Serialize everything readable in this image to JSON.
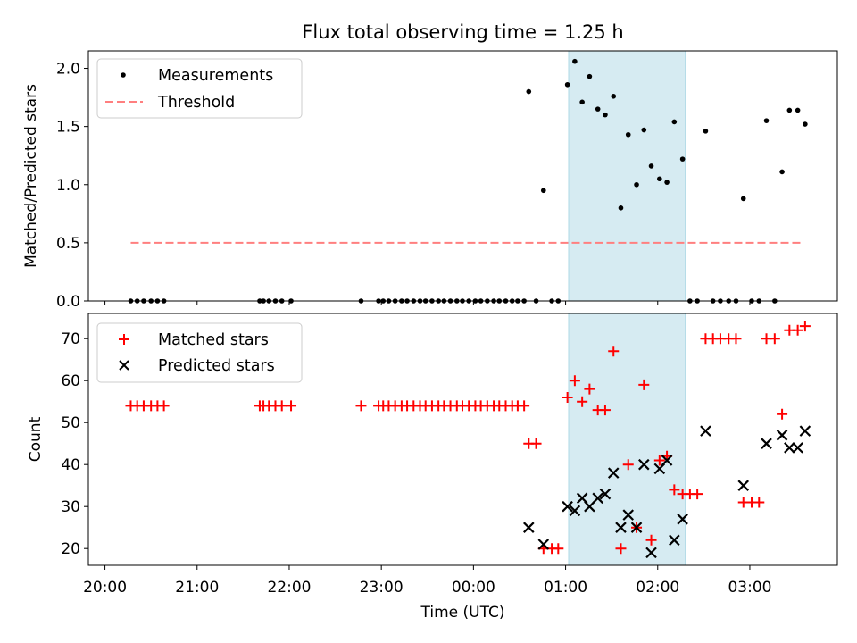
{
  "title": "Flux total observing time = 1.25 h",
  "colors": {
    "measurement": "#000000",
    "threshold": "#ff7f7f",
    "matched": "#ff0000",
    "predicted": "#000000",
    "highlight": "#add8e6"
  },
  "chart_data": [
    {
      "type": "scatter",
      "panel": "top",
      "ylabel": "Matched/Predicted stars",
      "ylim": [
        0,
        2.15
      ],
      "yticks": [
        "0.0",
        "0.5",
        "1.0",
        "1.5",
        "2.0"
      ],
      "xlim": [
        -0.18,
        7.95
      ],
      "x_unit": "hours since 20:00 UTC",
      "highlight_span": {
        "start": "01:02",
        "end": "02:18"
      },
      "legend": [
        {
          "label": "Measurements",
          "marker": "dot"
        },
        {
          "label": "Threshold",
          "marker": "dashed-line"
        }
      ],
      "threshold": {
        "value": 0.5,
        "from": 0.28,
        "to": 7.57
      },
      "series": [
        {
          "name": "Measurements",
          "points": [
            [
              0.28,
              0
            ],
            [
              0.35,
              0
            ],
            [
              0.42,
              0
            ],
            [
              0.5,
              0
            ],
            [
              0.57,
              0
            ],
            [
              0.64,
              0
            ],
            [
              1.68,
              0
            ],
            [
              1.72,
              0
            ],
            [
              1.78,
              0
            ],
            [
              1.85,
              0
            ],
            [
              1.92,
              0
            ],
            [
              2.02,
              0
            ],
            [
              2.78,
              0
            ],
            [
              2.97,
              0
            ],
            [
              3.02,
              0
            ],
            [
              3.08,
              0
            ],
            [
              3.15,
              0
            ],
            [
              3.22,
              0
            ],
            [
              3.28,
              0
            ],
            [
              3.35,
              0
            ],
            [
              3.42,
              0
            ],
            [
              3.48,
              0
            ],
            [
              3.55,
              0
            ],
            [
              3.62,
              0
            ],
            [
              3.68,
              0
            ],
            [
              3.75,
              0
            ],
            [
              3.82,
              0
            ],
            [
              3.88,
              0
            ],
            [
              3.95,
              0
            ],
            [
              4.02,
              0
            ],
            [
              4.08,
              0
            ],
            [
              4.15,
              0
            ],
            [
              4.22,
              0
            ],
            [
              4.28,
              0
            ],
            [
              4.35,
              0
            ],
            [
              4.42,
              0
            ],
            [
              4.48,
              0
            ],
            [
              4.55,
              0
            ],
            [
              4.6,
              1.8
            ],
            [
              4.68,
              0
            ],
            [
              4.76,
              0.95
            ],
            [
              4.85,
              0
            ],
            [
              4.92,
              0
            ],
            [
              5.02,
              1.86
            ],
            [
              5.1,
              2.06
            ],
            [
              5.18,
              1.71
            ],
            [
              5.26,
              1.93
            ],
            [
              5.35,
              1.65
            ],
            [
              5.43,
              1.6
            ],
            [
              5.52,
              1.76
            ],
            [
              5.6,
              0.8
            ],
            [
              5.68,
              1.43
            ],
            [
              5.77,
              1.0
            ],
            [
              5.85,
              1.47
            ],
            [
              5.93,
              1.16
            ],
            [
              6.02,
              1.05
            ],
            [
              6.1,
              1.02
            ],
            [
              6.18,
              1.54
            ],
            [
              6.27,
              1.22
            ],
            [
              6.35,
              0
            ],
            [
              6.43,
              0
            ],
            [
              6.52,
              1.46
            ],
            [
              6.6,
              0
            ],
            [
              6.68,
              0
            ],
            [
              6.77,
              0
            ],
            [
              6.85,
              0
            ],
            [
              6.93,
              0.88
            ],
            [
              7.02,
              0
            ],
            [
              7.1,
              0
            ],
            [
              7.18,
              1.55
            ],
            [
              7.27,
              0
            ],
            [
              7.35,
              1.11
            ],
            [
              7.43,
              1.64
            ],
            [
              7.52,
              1.64
            ],
            [
              7.6,
              1.52
            ]
          ]
        }
      ]
    },
    {
      "type": "scatter",
      "panel": "bottom",
      "xlabel": "Time (UTC)",
      "ylabel": "Count",
      "ylim": [
        16,
        76
      ],
      "yticks": [
        "20",
        "30",
        "40",
        "50",
        "60",
        "70"
      ],
      "xlim": [
        -0.18,
        7.95
      ],
      "xtick_labels": [
        "20:00",
        "21:00",
        "22:00",
        "23:00",
        "00:00",
        "01:00",
        "02:00",
        "03:00"
      ],
      "highlight_span": {
        "start": "01:02",
        "end": "02:18"
      },
      "legend": [
        {
          "label": "Matched stars",
          "marker": "plus"
        },
        {
          "label": "Predicted stars",
          "marker": "x"
        }
      ],
      "series": [
        {
          "name": "Matched stars",
          "points": [
            [
              0.28,
              54
            ],
            [
              0.35,
              54
            ],
            [
              0.42,
              54
            ],
            [
              0.5,
              54
            ],
            [
              0.57,
              54
            ],
            [
              0.64,
              54
            ],
            [
              1.68,
              54
            ],
            [
              1.72,
              54
            ],
            [
              1.78,
              54
            ],
            [
              1.85,
              54
            ],
            [
              1.92,
              54
            ],
            [
              2.02,
              54
            ],
            [
              2.78,
              54
            ],
            [
              2.97,
              54
            ],
            [
              3.02,
              54
            ],
            [
              3.08,
              54
            ],
            [
              3.15,
              54
            ],
            [
              3.22,
              54
            ],
            [
              3.28,
              54
            ],
            [
              3.35,
              54
            ],
            [
              3.42,
              54
            ],
            [
              3.48,
              54
            ],
            [
              3.55,
              54
            ],
            [
              3.62,
              54
            ],
            [
              3.68,
              54
            ],
            [
              3.75,
              54
            ],
            [
              3.82,
              54
            ],
            [
              3.88,
              54
            ],
            [
              3.95,
              54
            ],
            [
              4.02,
              54
            ],
            [
              4.08,
              54
            ],
            [
              4.15,
              54
            ],
            [
              4.22,
              54
            ],
            [
              4.28,
              54
            ],
            [
              4.35,
              54
            ],
            [
              4.42,
              54
            ],
            [
              4.48,
              54
            ],
            [
              4.55,
              54
            ],
            [
              4.6,
              45
            ],
            [
              4.68,
              45
            ],
            [
              4.76,
              20
            ],
            [
              4.85,
              20
            ],
            [
              4.92,
              20
            ],
            [
              5.02,
              56
            ],
            [
              5.1,
              60
            ],
            [
              5.18,
              55
            ],
            [
              5.26,
              58
            ],
            [
              5.35,
              53
            ],
            [
              5.43,
              53
            ],
            [
              5.52,
              67
            ],
            [
              5.6,
              20
            ],
            [
              5.68,
              40
            ],
            [
              5.77,
              25
            ],
            [
              5.85,
              59
            ],
            [
              5.93,
              22
            ],
            [
              6.02,
              41
            ],
            [
              6.1,
              42
            ],
            [
              6.18,
              34
            ],
            [
              6.27,
              33
            ],
            [
              6.35,
              33
            ],
            [
              6.43,
              33
            ],
            [
              6.52,
              70
            ],
            [
              6.6,
              70
            ],
            [
              6.68,
              70
            ],
            [
              6.77,
              70
            ],
            [
              6.85,
              70
            ],
            [
              6.93,
              31
            ],
            [
              7.02,
              31
            ],
            [
              7.1,
              31
            ],
            [
              7.18,
              70
            ],
            [
              7.27,
              70
            ],
            [
              7.35,
              52
            ],
            [
              7.43,
              72
            ],
            [
              7.52,
              72
            ],
            [
              7.6,
              73
            ]
          ]
        },
        {
          "name": "Predicted stars",
          "points": [
            [
              4.6,
              25
            ],
            [
              4.76,
              21
            ],
            [
              5.02,
              30
            ],
            [
              5.1,
              29
            ],
            [
              5.18,
              32
            ],
            [
              5.26,
              30
            ],
            [
              5.35,
              32
            ],
            [
              5.43,
              33
            ],
            [
              5.52,
              38
            ],
            [
              5.6,
              25
            ],
            [
              5.68,
              28
            ],
            [
              5.77,
              25
            ],
            [
              5.85,
              40
            ],
            [
              5.93,
              19
            ],
            [
              6.02,
              39
            ],
            [
              6.1,
              41
            ],
            [
              6.18,
              22
            ],
            [
              6.27,
              27
            ],
            [
              6.52,
              48
            ],
            [
              6.93,
              35
            ],
            [
              7.18,
              45
            ],
            [
              7.35,
              47
            ],
            [
              7.43,
              44
            ],
            [
              7.52,
              44
            ],
            [
              7.6,
              48
            ]
          ]
        }
      ]
    }
  ]
}
